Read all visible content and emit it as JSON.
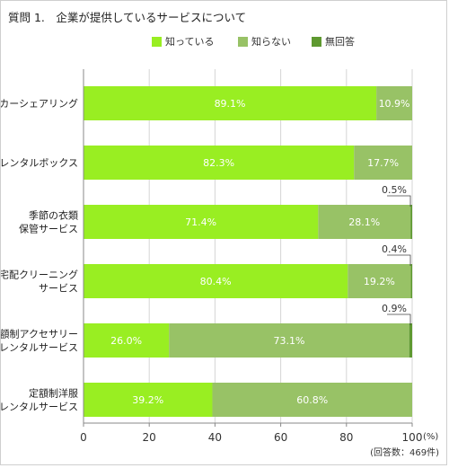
{
  "title": "質問 1.　企業が提供しているサービスについて",
  "chart_data": {
    "type": "bar",
    "orientation": "horizontal",
    "stacked": true,
    "title": "質問 1.　企業が提供しているサービスについて",
    "categories": [
      [
        "カーシェアリング"
      ],
      [
        "レンタルボックス"
      ],
      [
        "季節の衣類",
        "保管サービス"
      ],
      [
        "宅配クリーニング",
        "サービス"
      ],
      [
        "定額制アクセサリー",
        "レンタルサービス"
      ],
      [
        "定額制洋服",
        "レンタルサービス"
      ]
    ],
    "series": [
      {
        "name": "知っている",
        "color": "#99ee22",
        "values": [
          89.1,
          82.3,
          71.4,
          80.4,
          26.0,
          39.2
        ],
        "labels": [
          "89.1%",
          "82.3%",
          "71.4%",
          "80.4%",
          "26.0%",
          "39.2%"
        ]
      },
      {
        "name": "知らない",
        "color": "#98c266",
        "values": [
          10.9,
          17.7,
          28.1,
          19.2,
          73.1,
          60.8
        ],
        "labels": [
          "10.9%",
          "17.7%",
          "28.1%",
          "19.2%",
          "73.1%",
          "60.8%"
        ]
      },
      {
        "name": "無回答",
        "color": "#5e9930",
        "values": [
          0,
          0,
          0.5,
          0.4,
          0.9,
          0
        ],
        "labels": [
          "",
          "",
          "0.5%",
          "0.4%",
          "0.9%",
          ""
        ]
      }
    ],
    "xlim": [
      0,
      100
    ],
    "xticks": [
      0,
      20,
      40,
      60,
      80,
      100
    ],
    "xtick_labels": [
      "0",
      "20",
      "40",
      "60",
      "80",
      "100"
    ],
    "unit_label": "(%)",
    "note": "(回答数：469件)",
    "legend_position": "top-center",
    "grid": true,
    "colors": {
      "axis": "#888888",
      "grid": "#d5d5d5",
      "inside_label": "#ffffff",
      "outside_label": "#333333"
    }
  }
}
